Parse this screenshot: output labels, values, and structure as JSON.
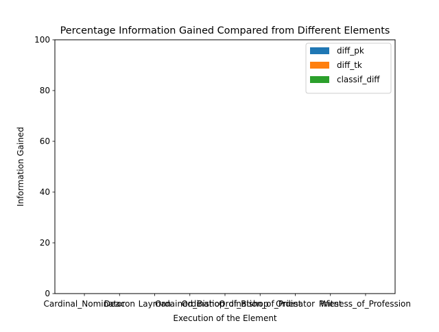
{
  "chart_data": {
    "type": "bar",
    "title": "Percentage Information Gained Compared from Different Elements",
    "xlabel": "Execution of the Element",
    "ylabel": "Information Gained",
    "ylim": [
      0,
      100
    ],
    "yticks": [
      0,
      20,
      40,
      60,
      80,
      100
    ],
    "categories": [
      "Cardinal_Nominator",
      "Deacon",
      "Layman",
      "Ordained_Bishop",
      "Ordination_of_Bishop",
      "Ordination_of_Priest",
      "Ordinator",
      "Priest",
      "Witness_of_Profession"
    ],
    "series": [
      {
        "name": "diff_pk",
        "color": "#1f77b4",
        "values": [
          0,
          0,
          0,
          0,
          0,
          0,
          0,
          0,
          0
        ]
      },
      {
        "name": "diff_tk",
        "color": "#ff7f0e",
        "values": [
          0,
          0,
          0,
          0,
          0,
          0,
          0,
          0,
          0
        ]
      },
      {
        "name": "classif_diff",
        "color": "#2ca02c",
        "values": [
          0,
          0,
          0,
          0,
          0,
          0,
          0,
          0,
          0
        ]
      }
    ],
    "grid": false,
    "legend_position": "top-right"
  }
}
